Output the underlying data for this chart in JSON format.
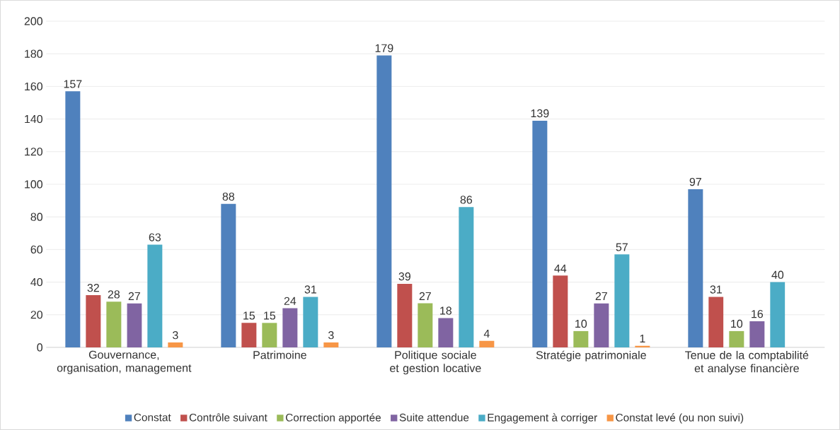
{
  "chart_data": {
    "type": "bar",
    "categories": [
      "Gouvernance, organisation, management",
      "Patrimoine",
      "Politique sociale et gestion locative",
      "Stratégie patrimoniale",
      "Tenue de la comptabilité et analyse financière"
    ],
    "series": [
      {
        "name": "Constat",
        "color": "#4f81bd",
        "values": [
          157,
          88,
          179,
          139,
          97
        ]
      },
      {
        "name": "Contrôle suivant",
        "color": "#c0504d",
        "values": [
          32,
          15,
          39,
          44,
          31
        ]
      },
      {
        "name": "Correction apportée",
        "color": "#9bbb59",
        "values": [
          28,
          15,
          27,
          10,
          10
        ]
      },
      {
        "name": "Suite attendue",
        "color": "#8064a2",
        "values": [
          27,
          24,
          18,
          27,
          16
        ]
      },
      {
        "name": "Engagement à corriger",
        "color": "#4bacc6",
        "values": [
          63,
          31,
          86,
          57,
          40
        ]
      },
      {
        "name": "Constat levé (ou non suivi)",
        "color": "#f79646",
        "values": [
          3,
          3,
          4,
          1,
          null
        ]
      }
    ],
    "ylim": [
      0,
      200
    ],
    "yticks": [
      0,
      20,
      40,
      60,
      80,
      100,
      120,
      140,
      160,
      180,
      200
    ],
    "grid": "y",
    "legend": "bottom",
    "data_labels": true
  }
}
